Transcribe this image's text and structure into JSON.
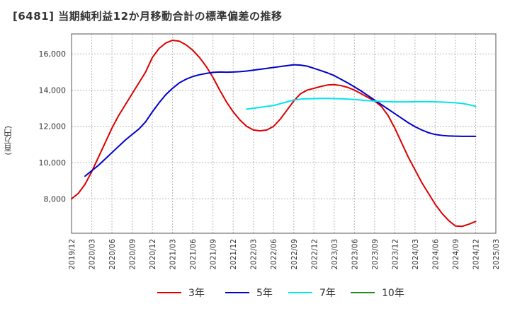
{
  "chart_data": {
    "type": "line",
    "title": "[6481]  当期純利益12か月移動合計の標準偏差の推移",
    "ylabel": "(百万円)",
    "xlabel": "",
    "ylim": [
      6100,
      17100
    ],
    "yticks": [
      8000,
      10000,
      12000,
      14000,
      16000
    ],
    "ytick_labels": [
      "8,000",
      "10,000",
      "12,000",
      "14,000",
      "16,000"
    ],
    "x_ticks": [
      "2019/12",
      "2020/03",
      "2020/06",
      "2020/09",
      "2020/12",
      "2021/03",
      "2021/06",
      "2021/09",
      "2021/12",
      "2022/03",
      "2022/06",
      "2022/09",
      "2022/12",
      "2023/03",
      "2023/06",
      "2023/09",
      "2023/12",
      "2024/03",
      "2024/06",
      "2024/09",
      "2024/12",
      "2025/03"
    ],
    "grid": true,
    "legend_position": "bottom",
    "series": [
      {
        "name": "3年",
        "color": "#dd0000",
        "points": [
          [
            "2019/12",
            8000
          ],
          [
            "2020/01",
            8300
          ],
          [
            "2020/02",
            8800
          ],
          [
            "2020/03",
            9500
          ],
          [
            "2020/04",
            10300
          ],
          [
            "2020/05",
            11100
          ],
          [
            "2020/06",
            11900
          ],
          [
            "2020/07",
            12600
          ],
          [
            "2020/08",
            13200
          ],
          [
            "2020/09",
            13800
          ],
          [
            "2020/10",
            14400
          ],
          [
            "2020/11",
            15000
          ],
          [
            "2020/12",
            15800
          ],
          [
            "2021/01",
            16300
          ],
          [
            "2021/02",
            16600
          ],
          [
            "2021/03",
            16750
          ],
          [
            "2021/04",
            16700
          ],
          [
            "2021/05",
            16500
          ],
          [
            "2021/06",
            16200
          ],
          [
            "2021/07",
            15800
          ],
          [
            "2021/08",
            15300
          ],
          [
            "2021/09",
            14700
          ],
          [
            "2021/10",
            14000
          ],
          [
            "2021/11",
            13350
          ],
          [
            "2021/12",
            12800
          ],
          [
            "2022/01",
            12350
          ],
          [
            "2022/02",
            12000
          ],
          [
            "2022/03",
            11800
          ],
          [
            "2022/04",
            11750
          ],
          [
            "2022/05",
            11800
          ],
          [
            "2022/06",
            12000
          ],
          [
            "2022/07",
            12400
          ],
          [
            "2022/08",
            12900
          ],
          [
            "2022/09",
            13400
          ],
          [
            "2022/10",
            13800
          ],
          [
            "2022/11",
            14000
          ],
          [
            "2022/12",
            14100
          ],
          [
            "2023/01",
            14200
          ],
          [
            "2023/02",
            14280
          ],
          [
            "2023/03",
            14300
          ],
          [
            "2023/04",
            14250
          ],
          [
            "2023/05",
            14150
          ],
          [
            "2023/06",
            14000
          ],
          [
            "2023/07",
            13800
          ],
          [
            "2023/08",
            13600
          ],
          [
            "2023/09",
            13400
          ],
          [
            "2023/10",
            13100
          ],
          [
            "2023/11",
            12600
          ],
          [
            "2023/12",
            11900
          ],
          [
            "2024/01",
            11100
          ],
          [
            "2024/02",
            10300
          ],
          [
            "2024/03",
            9600
          ],
          [
            "2024/04",
            8900
          ],
          [
            "2024/05",
            8300
          ],
          [
            "2024/06",
            7700
          ],
          [
            "2024/07",
            7200
          ],
          [
            "2024/08",
            6800
          ],
          [
            "2024/09",
            6500
          ],
          [
            "2024/10",
            6480
          ],
          [
            "2024/11",
            6600
          ],
          [
            "2024/12",
            6750
          ]
        ]
      },
      {
        "name": "5年",
        "color": "#0000cc",
        "points": [
          [
            "2020/02",
            9250
          ],
          [
            "2020/03",
            9550
          ],
          [
            "2020/04",
            9850
          ],
          [
            "2020/05",
            10200
          ],
          [
            "2020/06",
            10550
          ],
          [
            "2020/07",
            10900
          ],
          [
            "2020/08",
            11250
          ],
          [
            "2020/09",
            11550
          ],
          [
            "2020/10",
            11850
          ],
          [
            "2020/11",
            12250
          ],
          [
            "2020/12",
            12800
          ],
          [
            "2021/01",
            13300
          ],
          [
            "2021/02",
            13750
          ],
          [
            "2021/03",
            14100
          ],
          [
            "2021/04",
            14400
          ],
          [
            "2021/05",
            14600
          ],
          [
            "2021/06",
            14750
          ],
          [
            "2021/07",
            14850
          ],
          [
            "2021/08",
            14920
          ],
          [
            "2021/09",
            14980
          ],
          [
            "2021/10",
            15000
          ],
          [
            "2021/11",
            14990
          ],
          [
            "2021/12",
            15000
          ],
          [
            "2022/01",
            15020
          ],
          [
            "2022/02",
            15050
          ],
          [
            "2022/03",
            15100
          ],
          [
            "2022/04",
            15150
          ],
          [
            "2022/05",
            15200
          ],
          [
            "2022/06",
            15250
          ],
          [
            "2022/07",
            15300
          ],
          [
            "2022/08",
            15350
          ],
          [
            "2022/09",
            15400
          ],
          [
            "2022/10",
            15380
          ],
          [
            "2022/11",
            15320
          ],
          [
            "2022/12",
            15200
          ],
          [
            "2023/01",
            15080
          ],
          [
            "2023/02",
            14950
          ],
          [
            "2023/03",
            14800
          ],
          [
            "2023/04",
            14600
          ],
          [
            "2023/05",
            14400
          ],
          [
            "2023/06",
            14180
          ],
          [
            "2023/07",
            13950
          ],
          [
            "2023/08",
            13700
          ],
          [
            "2023/09",
            13450
          ],
          [
            "2023/10",
            13200
          ],
          [
            "2023/11",
            12950
          ],
          [
            "2023/12",
            12700
          ],
          [
            "2024/01",
            12450
          ],
          [
            "2024/02",
            12200
          ],
          [
            "2024/03",
            11980
          ],
          [
            "2024/04",
            11800
          ],
          [
            "2024/05",
            11650
          ],
          [
            "2024/06",
            11550
          ],
          [
            "2024/07",
            11500
          ],
          [
            "2024/08",
            11470
          ],
          [
            "2024/09",
            11460
          ],
          [
            "2024/10",
            11450
          ],
          [
            "2024/11",
            11450
          ],
          [
            "2024/12",
            11450
          ]
        ]
      },
      {
        "name": "7年",
        "color": "#00e5ee",
        "points": [
          [
            "2022/02",
            12950
          ],
          [
            "2022/03",
            13000
          ],
          [
            "2022/04",
            13050
          ],
          [
            "2022/05",
            13100
          ],
          [
            "2022/06",
            13150
          ],
          [
            "2022/07",
            13250
          ],
          [
            "2022/08",
            13350
          ],
          [
            "2022/09",
            13450
          ],
          [
            "2022/10",
            13500
          ],
          [
            "2022/11",
            13520
          ],
          [
            "2022/12",
            13530
          ],
          [
            "2023/01",
            13540
          ],
          [
            "2023/02",
            13540
          ],
          [
            "2023/03",
            13530
          ],
          [
            "2023/04",
            13520
          ],
          [
            "2023/05",
            13500
          ],
          [
            "2023/06",
            13480
          ],
          [
            "2023/07",
            13450
          ],
          [
            "2023/08",
            13420
          ],
          [
            "2023/09",
            13400
          ],
          [
            "2023/10",
            13370
          ],
          [
            "2023/11",
            13360
          ],
          [
            "2023/12",
            13350
          ],
          [
            "2024/01",
            13350
          ],
          [
            "2024/02",
            13350
          ],
          [
            "2024/03",
            13360
          ],
          [
            "2024/04",
            13360
          ],
          [
            "2024/05",
            13360
          ],
          [
            "2024/06",
            13350
          ],
          [
            "2024/07",
            13340
          ],
          [
            "2024/08",
            13320
          ],
          [
            "2024/09",
            13300
          ],
          [
            "2024/10",
            13260
          ],
          [
            "2024/11",
            13200
          ],
          [
            "2024/12",
            13100
          ]
        ]
      },
      {
        "name": "10年",
        "color": "#228b22",
        "points": []
      }
    ]
  }
}
